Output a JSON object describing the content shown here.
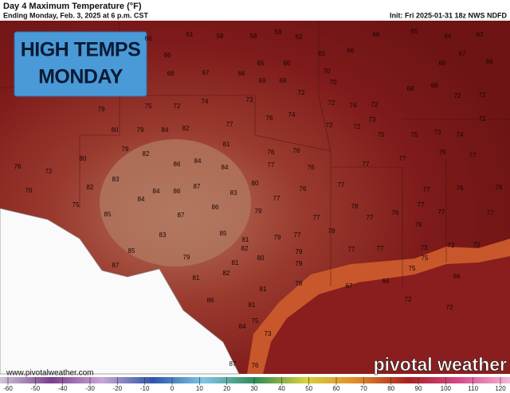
{
  "header": {
    "title": "Day 4 Maximum Temperature (°F)",
    "subtitle": "Ending Monday, Feb. 3, 2025 at 6 p.m. CST",
    "init": "Init: Fri 2025-01-31 18z NWS NDFD"
  },
  "overlay": {
    "line1": "HIGH TEMPS",
    "line2": "MONDAY"
  },
  "temperature_labels": [
    61,
    58,
    58,
    59,
    62,
    66,
    66,
    66,
    65,
    64,
    66,
    63,
    67,
    66,
    66,
    65,
    65,
    66,
    67,
    66,
    68,
    69,
    69,
    70,
    70,
    68,
    68,
    72,
    72,
    72,
    72,
    74,
    72,
    73,
    75,
    75,
    72,
    74,
    73,
    79,
    80,
    79,
    84,
    82,
    77,
    76,
    74,
    72,
    72,
    75,
    73,
    74,
    72,
    79,
    82,
    81,
    80,
    76,
    72,
    86,
    84,
    84,
    76,
    76,
    77,
    76,
    77,
    77,
    76,
    77,
    82,
    83,
    84,
    87,
    86,
    83,
    80,
    77,
    76,
    77,
    77,
    76,
    76,
    76,
    75,
    84,
    86,
    79,
    78,
    77,
    77,
    76,
    77,
    77,
    77,
    85,
    87,
    85,
    81,
    83,
    79,
    77,
    78,
    76,
    85,
    82,
    79,
    77,
    77,
    79,
    81,
    80,
    79,
    87,
    82,
    73,
    75,
    72,
    70,
    75,
    81,
    81,
    78,
    67,
    66,
    66,
    86,
    81,
    72,
    72,
    84,
    75,
    73,
    87,
    76
  ],
  "colorbar": {
    "ticks": [
      -60,
      -50,
      -40,
      -30,
      -20,
      -10,
      0,
      10,
      20,
      30,
      40,
      50,
      60,
      70,
      80,
      90,
      100,
      110,
      120
    ]
  },
  "footer": {
    "website": "www.pivotalweather.com",
    "logo": "pivotal weather"
  }
}
